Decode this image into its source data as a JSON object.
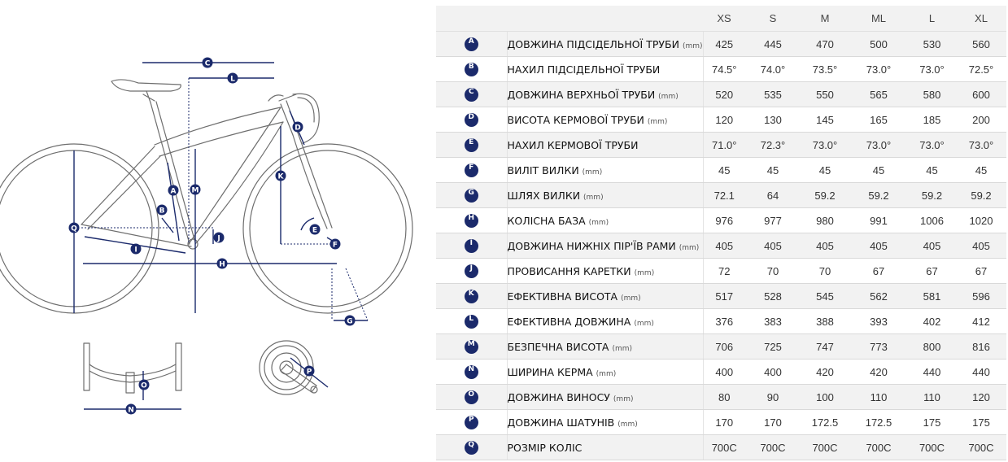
{
  "sizes": [
    "XS",
    "S",
    "M",
    "ML",
    "L",
    "XL"
  ],
  "rows": [
    {
      "letter": "A",
      "name": "ДОВЖИНА ПІДСІДЕЛЬНОЇ ТРУБИ",
      "unit": "(mm)",
      "values": [
        "425",
        "445",
        "470",
        "500",
        "530",
        "560"
      ]
    },
    {
      "letter": "B",
      "name": "НАХИЛ ПІДСІДЕЛЬНОЇ ТРУБИ",
      "unit": "",
      "values": [
        "74.5°",
        "74.0°",
        "73.5°",
        "73.0°",
        "73.0°",
        "72.5°"
      ]
    },
    {
      "letter": "C",
      "name": "ДОВЖИНА ВЕРХНЬОЇ ТРУБИ",
      "unit": "(mm)",
      "values": [
        "520",
        "535",
        "550",
        "565",
        "580",
        "600"
      ]
    },
    {
      "letter": "D",
      "name": "ВИСОТА КЕРМОВОЇ ТРУБИ",
      "unit": "(mm)",
      "values": [
        "120",
        "130",
        "145",
        "165",
        "185",
        "200"
      ]
    },
    {
      "letter": "E",
      "name": "НАХИЛ КЕРМОВОЇ ТРУБИ",
      "unit": "",
      "values": [
        "71.0°",
        "72.3°",
        "73.0°",
        "73.0°",
        "73.0°",
        "73.0°"
      ]
    },
    {
      "letter": "F",
      "name": "ВИЛІТ ВИЛКИ",
      "unit": "(mm)",
      "values": [
        "45",
        "45",
        "45",
        "45",
        "45",
        "45"
      ]
    },
    {
      "letter": "G",
      "name": "ШЛЯХ ВИЛКИ",
      "unit": "(mm)",
      "values": [
        "72.1",
        "64",
        "59.2",
        "59.2",
        "59.2",
        "59.2"
      ]
    },
    {
      "letter": "H",
      "name": "КОЛІСНА БАЗА",
      "unit": "(mm)",
      "values": [
        "976",
        "977",
        "980",
        "991",
        "1006",
        "1020"
      ]
    },
    {
      "letter": "I",
      "name": "ДОВЖИНА НИЖНІХ ПІР'ЇВ РАМИ",
      "unit": "(mm)",
      "values": [
        "405",
        "405",
        "405",
        "405",
        "405",
        "405"
      ]
    },
    {
      "letter": "J",
      "name": "ПРОВИСАННЯ КАРЕТКИ",
      "unit": "(mm)",
      "values": [
        "72",
        "70",
        "70",
        "67",
        "67",
        "67"
      ]
    },
    {
      "letter": "K",
      "name": "ЕФЕКТИВНА ВИСОТА",
      "unit": "(mm)",
      "values": [
        "517",
        "528",
        "545",
        "562",
        "581",
        "596"
      ]
    },
    {
      "letter": "L",
      "name": "ЕФЕКТИВНА ДОВЖИНА",
      "unit": "(mm)",
      "values": [
        "376",
        "383",
        "388",
        "393",
        "402",
        "412"
      ]
    },
    {
      "letter": "M",
      "name": "БЕЗПЕЧНА ВИСОТА",
      "unit": "(mm)",
      "values": [
        "706",
        "725",
        "747",
        "773",
        "800",
        "816"
      ]
    },
    {
      "letter": "N",
      "name": "ШИРИНА КЕРМА",
      "unit": "(mm)",
      "values": [
        "400",
        "400",
        "420",
        "420",
        "440",
        "440"
      ]
    },
    {
      "letter": "O",
      "name": "ДОВЖИНА ВИНОСУ",
      "unit": "(mm)",
      "values": [
        "80",
        "90",
        "100",
        "110",
        "110",
        "120"
      ]
    },
    {
      "letter": "P",
      "name": "ДОВЖИНА ШАТУНІВ",
      "unit": "(mm)",
      "values": [
        "170",
        "170",
        "172.5",
        "172.5",
        "175",
        "175"
      ]
    },
    {
      "letter": "Q",
      "name": "РОЗМІР КОЛІС",
      "unit": "",
      "values": [
        "700C",
        "700C",
        "700C",
        "700C",
        "700C",
        "700C"
      ]
    }
  ],
  "diagram": {
    "labels": [
      "A",
      "B",
      "C",
      "D",
      "E",
      "F",
      "G",
      "H",
      "I",
      "J",
      "K",
      "L",
      "M",
      "N",
      "O",
      "P",
      "Q"
    ],
    "icons": [
      "bicycle-frame-icon",
      "handlebar-icon",
      "crankset-icon"
    ]
  },
  "colors": {
    "accent": "#1b2a6b",
    "frame_line": "#6e6e6e",
    "row_shade": "#f2f2f2",
    "header_bg": "#f2f2f2"
  }
}
